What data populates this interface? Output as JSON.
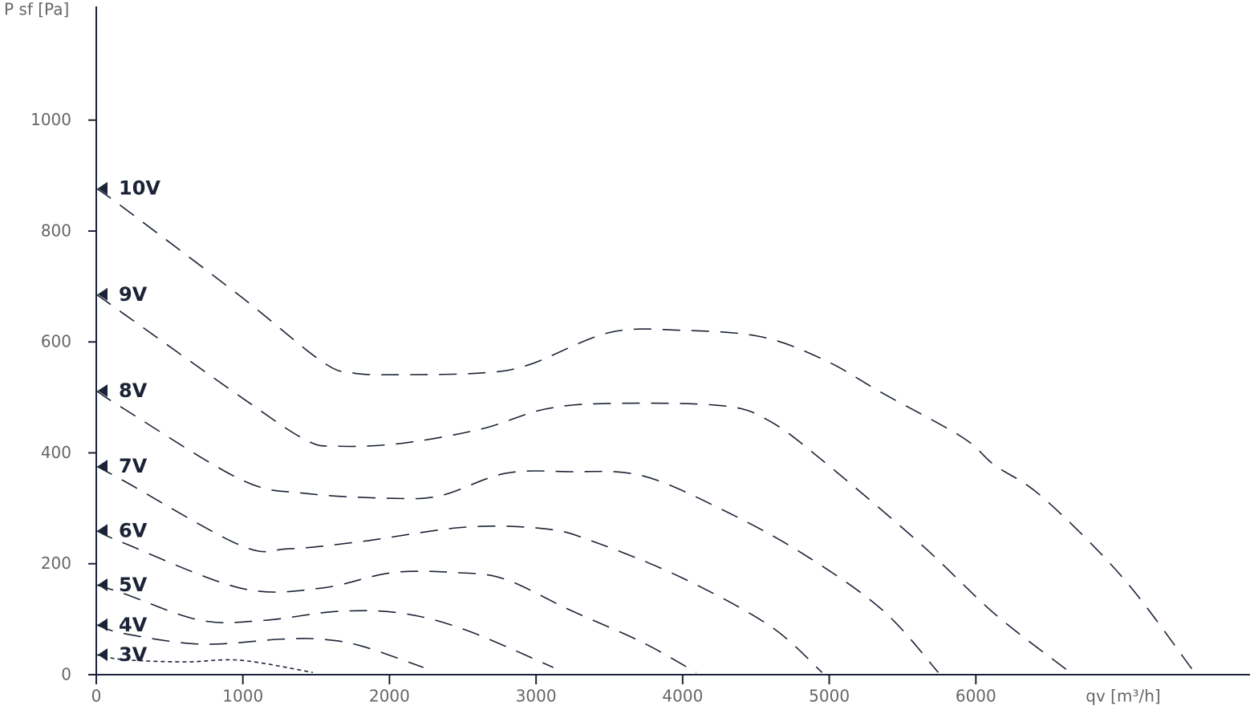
{
  "chart_data": {
    "type": "line",
    "ylabel": "P sf [Pa]",
    "xlabel": "qv [m³/h]",
    "xlim": [
      0,
      7870
    ],
    "ylim": [
      0,
      1205
    ],
    "xticks": [
      0,
      1000,
      2000,
      3000,
      4000,
      5000,
      6000
    ],
    "yticks": [
      0,
      200,
      400,
      600,
      800,
      1000
    ],
    "color": "#1b2337",
    "series": [
      {
        "name": "10V",
        "x": [
          0,
          191,
          985,
          1532,
          1750,
          2079,
          2626,
          2954,
          3501,
          3993,
          4540,
          4978,
          5361,
          5908,
          6127,
          6455,
          7002,
          7478
        ],
        "values": [
          877,
          841,
          682,
          566,
          544,
          541,
          544,
          559,
          617,
          621,
          609,
          566,
          508,
          428,
          378,
          320,
          175,
          9
        ]
      },
      {
        "name": "9V",
        "x": [
          0,
          191,
          985,
          1423,
          1641,
          2079,
          2626,
          3064,
          3501,
          4267,
          4595,
          4978,
          5635,
          6127,
          6619
        ],
        "values": [
          686,
          650,
          501,
          424,
          412,
          417,
          443,
          479,
          489,
          485,
          457,
          381,
          233,
          110,
          9
        ]
      },
      {
        "name": "8V",
        "x": [
          0,
          191,
          985,
          1423,
          2019,
          2352,
          2790,
          3228,
          3720,
          4267,
          4814,
          5361,
          5744
        ],
        "values": [
          512,
          479,
          352,
          327,
          318,
          323,
          363,
          366,
          359,
          298,
          219,
          117,
          4
        ]
      },
      {
        "name": "7V",
        "x": [
          0,
          191,
          985,
          1313,
          1805,
          2516,
          3064,
          3392,
          3993,
          4595,
          4951
        ],
        "values": [
          376,
          349,
          233,
          227,
          240,
          266,
          263,
          240,
          175,
          88,
          4
        ]
      },
      {
        "name": "6V",
        "x": [
          0,
          191,
          985,
          1532,
          2019,
          2462,
          2790,
          3228,
          3720,
          4092
        ],
        "values": [
          260,
          237,
          156,
          156,
          184,
          184,
          172,
          117,
          59,
          4
        ]
      },
      {
        "name": "5V",
        "x": [
          0,
          191,
          711,
          1149,
          1641,
          2079,
          2516,
          3118
        ],
        "values": [
          162,
          146,
          98,
          98,
          114,
          111,
          81,
          13
        ]
      },
      {
        "name": "4V",
        "x": [
          0,
          191,
          711,
          1258,
          1532,
          1805,
          2232
        ],
        "values": [
          90,
          74,
          55,
          64,
          64,
          52,
          13
        ]
      },
      {
        "name": "3V",
        "x": [
          0,
          191,
          602,
          985,
          1477
        ],
        "values": [
          36,
          27,
          23,
          26,
          4
        ]
      }
    ]
  }
}
